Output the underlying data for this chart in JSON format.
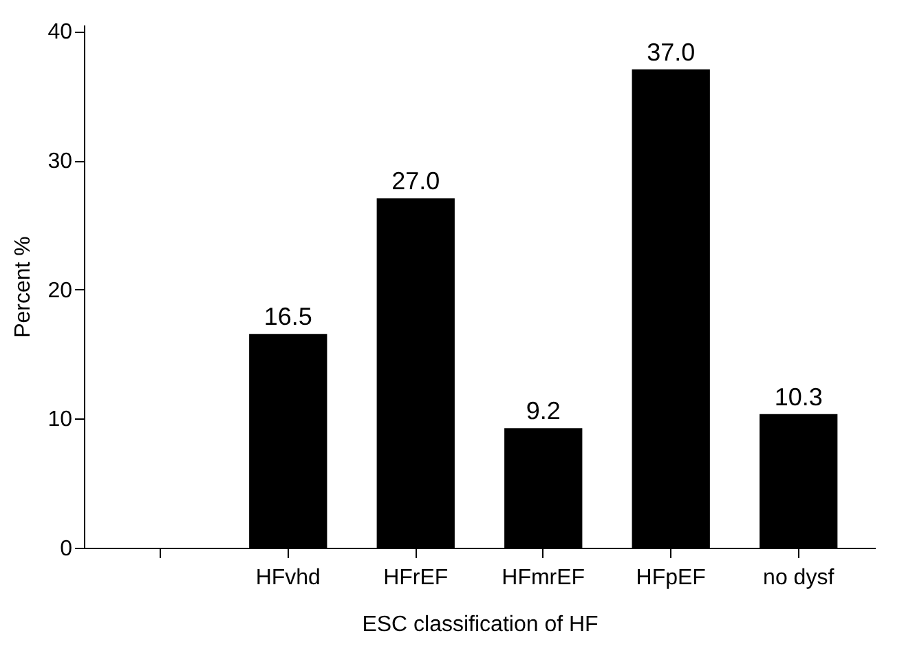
{
  "chart_data": {
    "type": "bar",
    "xlabel": "ESC classification of HF",
    "ylabel": "Percent %",
    "categories": [
      null,
      "HFvhd",
      "HFrEF",
      "HFmrEF",
      "HFpEF",
      "no dysf"
    ],
    "values": [
      null,
      16.5,
      27.0,
      9.2,
      37.0,
      10.3
    ],
    "value_labels": [
      null,
      "16.5",
      "27.0",
      "9.2",
      "37.0",
      "10.3"
    ],
    "color": "#000000",
    "ylim": [
      0,
      40.5
    ],
    "yticks": [
      0,
      10,
      20,
      30,
      40
    ],
    "grid": false
  }
}
